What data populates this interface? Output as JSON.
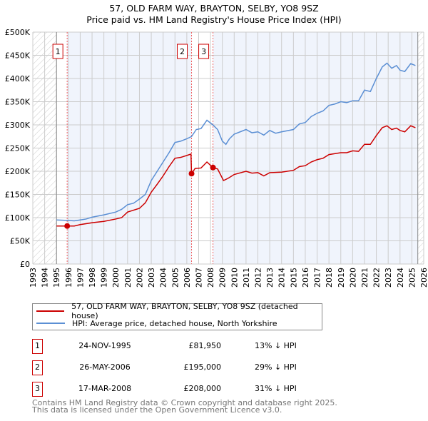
{
  "title": "57, OLD FARM WAY, BRAYTON, SELBY, YO8 9SZ",
  "subtitle": "Price paid vs. HM Land Registry's House Price Index (HPI)",
  "chart_data": {
    "type": "line",
    "xlim": [
      1993,
      2026
    ],
    "ylim": [
      0,
      500000
    ],
    "yticks": [
      0,
      50000,
      100000,
      150000,
      200000,
      250000,
      300000,
      350000,
      400000,
      450000,
      500000
    ],
    "ytick_labels": [
      "£0",
      "£50K",
      "£100K",
      "£150K",
      "£200K",
      "£250K",
      "£300K",
      "£350K",
      "£400K",
      "£450K",
      "£500K"
    ],
    "xtick_labels": [
      "1993",
      "1994",
      "1995",
      "1996",
      "1997",
      "1998",
      "1999",
      "2000",
      "2001",
      "2002",
      "2003",
      "2004",
      "2005",
      "2006",
      "2007",
      "2008",
      "2009",
      "2010",
      "2011",
      "2012",
      "2013",
      "2014",
      "2015",
      "2016",
      "2017",
      "2018",
      "2019",
      "2020",
      "2021",
      "2022",
      "2023",
      "2024",
      "2025",
      "2026"
    ],
    "data_start": 1995.0,
    "data_end": 2025.5,
    "series": [
      {
        "name": "57, OLD FARM WAY, BRAYTON, SELBY, YO8 9SZ (detached house)",
        "color": "#cc0000",
        "x": [
          1995,
          1995.9,
          1996.5,
          1997,
          1998,
          1999,
          2000,
          2000.5,
          2001,
          2002,
          2002.5,
          2003,
          2003.5,
          2004,
          2004.5,
          2005,
          2005.5,
          2006,
          2006.35,
          2006.4,
          2006.7,
          2007.2,
          2007.7,
          2008.2,
          2008.6,
          2009.1,
          2009.5,
          2010,
          2011,
          2011.5,
          2012,
          2012.5,
          2013,
          2014,
          2015,
          2015.5,
          2016,
          2016.5,
          2017,
          2017.5,
          2018,
          2019,
          2019.5,
          2020,
          2020.5,
          2021,
          2021.5,
          2022,
          2022.5,
          2022.9,
          2023.3,
          2023.7,
          2024,
          2024.4,
          2024.9,
          2025.3
        ],
        "y": [
          82000,
          81950,
          82000,
          85000,
          89000,
          92000,
          97000,
          100000,
          112000,
          120000,
          132000,
          155000,
          172000,
          190000,
          210000,
          228000,
          230000,
          234000,
          237000,
          195000,
          206000,
          207000,
          220000,
          208000,
          205000,
          180000,
          185000,
          193000,
          200000,
          196000,
          197000,
          190000,
          197000,
          198000,
          202000,
          210000,
          212000,
          220000,
          225000,
          228000,
          236000,
          240000,
          240000,
          244000,
          243000,
          258000,
          258000,
          277000,
          294000,
          298000,
          290000,
          293000,
          288000,
          285000,
          298000,
          294000
        ]
      },
      {
        "name": "HPI: Average price, detached house, North Yorkshire",
        "color": "#5b8fd4",
        "x": [
          1995,
          1995.9,
          1996.5,
          1997,
          1997.5,
          1998,
          1999,
          2000,
          2000.5,
          2001,
          2001.5,
          2002,
          2002.5,
          2003,
          2003.5,
          2004,
          2004.5,
          2005,
          2005.5,
          2006,
          2006.4,
          2006.8,
          2007.2,
          2007.7,
          2008.2,
          2008.6,
          2009,
          2009.3,
          2009.6,
          2010,
          2011,
          2011.5,
          2012,
          2012.5,
          2013,
          2013.5,
          2014,
          2015,
          2015.5,
          2016,
          2016.5,
          2017,
          2017.5,
          2018,
          2018.5,
          2019,
          2019.5,
          2020,
          2020.5,
          2021,
          2021.5,
          2022,
          2022.5,
          2022.9,
          2023.3,
          2023.7,
          2024,
          2024.4,
          2024.9,
          2025.3
        ],
        "y": [
          95000,
          94000,
          93000,
          95000,
          97000,
          101000,
          106000,
          112000,
          118000,
          128000,
          131000,
          140000,
          150000,
          180000,
          200000,
          220000,
          240000,
          262000,
          265000,
          270000,
          275000,
          290000,
          292000,
          310000,
          300000,
          290000,
          265000,
          258000,
          270000,
          280000,
          290000,
          283000,
          285000,
          278000,
          288000,
          282000,
          285000,
          290000,
          302000,
          305000,
          318000,
          325000,
          330000,
          342000,
          345000,
          350000,
          348000,
          352000,
          352000,
          375000,
          372000,
          400000,
          425000,
          433000,
          422000,
          428000,
          418000,
          415000,
          432000,
          428000
        ]
      }
    ],
    "sales": [
      {
        "label": "1",
        "x": 1995.9,
        "y": 81950,
        "date": "24-NOV-1995",
        "price": "£81,950",
        "hpi": "13% ↓ HPI"
      },
      {
        "label": "2",
        "x": 2006.4,
        "y": 195000,
        "date": "26-MAY-2006",
        "price": "£195,000",
        "hpi": "29% ↓ HPI"
      },
      {
        "label": "3",
        "x": 2008.21,
        "y": 208000,
        "date": "17-MAR-2008",
        "price": "£208,000",
        "hpi": "31% ↓ HPI"
      }
    ]
  },
  "footer": {
    "line1": "Contains HM Land Registry data © Crown copyright and database right 2025.",
    "line2": "This data is licensed under the Open Government Licence v3.0."
  }
}
